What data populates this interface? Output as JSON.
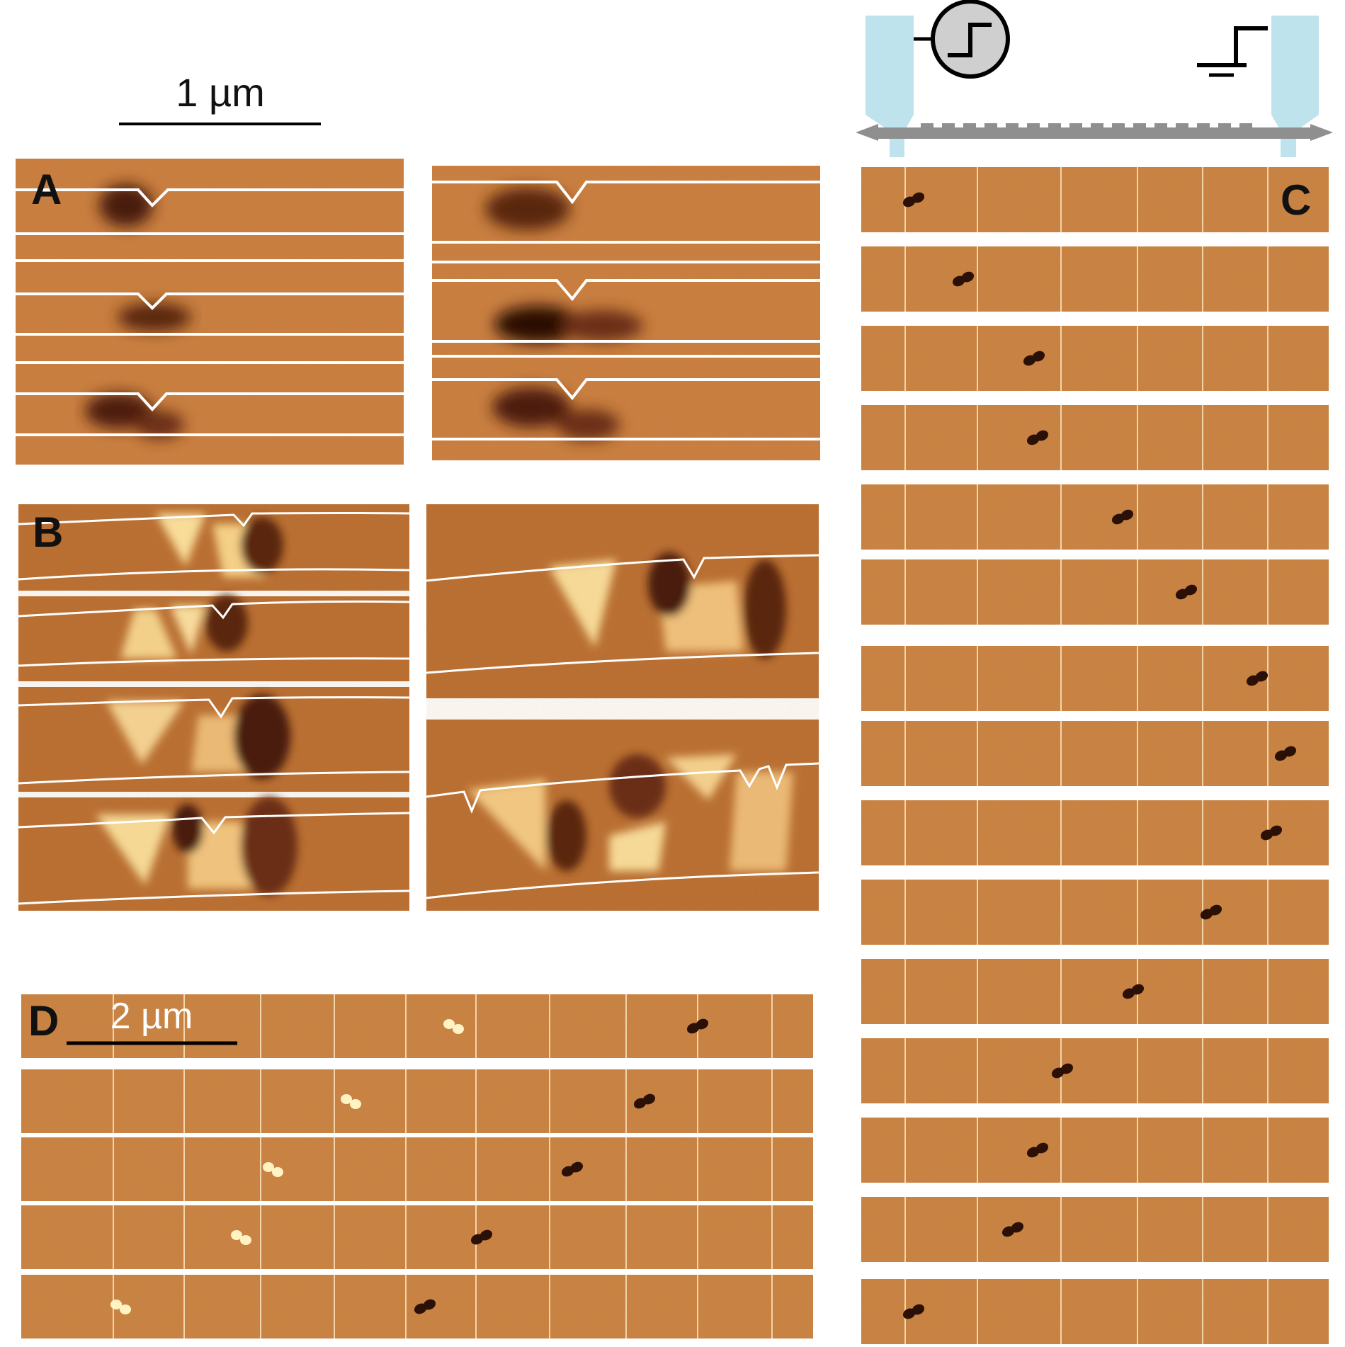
{
  "figure": {
    "scale_bar_top": "1 µm",
    "scale_bar_d": "2 µm",
    "panels": {
      "A": {
        "label": "A",
        "stack_count": 3
      },
      "B": {
        "label": "B"
      },
      "C": {
        "label": "C",
        "frame_count": 15
      },
      "D": {
        "label": "D",
        "frame_count": 5
      }
    },
    "circuit": {
      "source_icon": "step-voltage-source-icon",
      "ground_icon": "ground-icon",
      "electrode_color": "#bfe3ec",
      "nanowire_color": "#8f8f8f"
    },
    "colors": {
      "background_tone": "#c77a3a",
      "dark_domain": "#4a1e0a",
      "bright_domain": "#fbe6a8",
      "track_line": "#ffffff"
    }
  }
}
